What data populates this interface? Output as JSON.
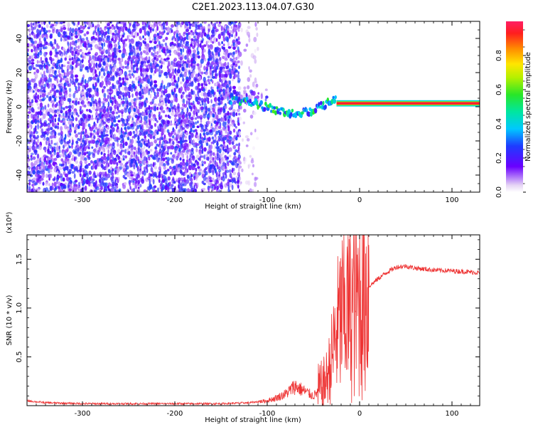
{
  "title": "C2E1.2023.113.04.07.G30",
  "colors": {
    "snr_line": "#ee3333",
    "axis": "#000000"
  },
  "chart_data": [
    {
      "type": "heatmap",
      "xlabel": "Height of straight line (km)",
      "ylabel": "Frequency (Hz)",
      "xlim": [
        -360,
        130
      ],
      "ylim": [
        -50,
        50
      ],
      "x_ticks": [
        -300,
        -200,
        -100,
        0,
        100
      ],
      "y_ticks": [
        -40,
        -20,
        0,
        20,
        40
      ],
      "colorbar": {
        "label": "Normalized spectral amplitude",
        "range": [
          0,
          1
        ],
        "ticks": [
          0.0,
          0.2,
          0.4,
          0.6,
          0.8
        ],
        "tick_labels": [
          "0.0",
          "0.2",
          "0.4",
          "0.6",
          "0.8"
        ]
      },
      "regions": [
        {
          "x_range": [
            -360,
            -130
          ],
          "freq_range": [
            -50,
            50
          ],
          "amplitude": 0.15,
          "pattern": "broadband noise"
        },
        {
          "x_range": [
            -130,
            -110
          ],
          "freq_range": [
            -50,
            50
          ],
          "amplitude": 0.05,
          "pattern": "sparse noise"
        },
        {
          "x_range": [
            -150,
            -100
          ],
          "freq_range": [
            2,
            10
          ],
          "amplitude": 0.15,
          "pattern": "scatter"
        },
        {
          "x_range": [
            -140,
            -25
          ],
          "freq_range": [
            -12,
            8
          ],
          "amplitude": 0.5,
          "pattern": "signal trace"
        },
        {
          "x_range": [
            -25,
            130
          ],
          "freq_range": [
            1,
            3
          ],
          "amplitude": 0.95,
          "pattern": "stable carrier"
        }
      ]
    },
    {
      "type": "line",
      "xlabel": "Height of straight line (km)",
      "ylabel": "SNR (10 * v/v)",
      "y_multiplier": "(x10⁴)",
      "xlim": [
        -360,
        130
      ],
      "ylim": [
        0,
        1.75
      ],
      "x_ticks": [
        -300,
        -200,
        -100,
        0,
        100
      ],
      "y_ticks": [
        0.5,
        1.0,
        1.5
      ],
      "y_tick_labels": [
        "0.5",
        "1.0",
        "1.5"
      ],
      "series": [
        {
          "x": [
            -360,
            -340,
            -300,
            -250,
            -200,
            -150,
            -120,
            -100,
            -90,
            -80,
            -70,
            -60,
            -50,
            -40,
            -35,
            -30,
            -25,
            -20,
            -15,
            -10,
            -5,
            0,
            5,
            10,
            20,
            30,
            40,
            50,
            60,
            80,
            100,
            120,
            130
          ],
          "values": [
            0.05,
            0.03,
            0.02,
            0.02,
            0.02,
            0.02,
            0.03,
            0.05,
            0.08,
            0.12,
            0.2,
            0.15,
            0.1,
            0.18,
            0.3,
            0.5,
            0.75,
            0.9,
            1.0,
            0.95,
            1.05,
            1.1,
            1.18,
            1.22,
            1.3,
            1.37,
            1.42,
            1.43,
            1.41,
            1.39,
            1.38,
            1.37,
            1.36
          ]
        }
      ]
    }
  ]
}
